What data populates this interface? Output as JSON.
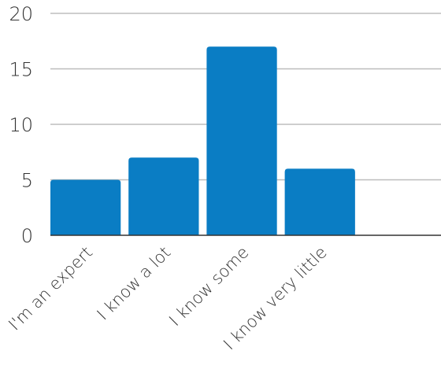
{
  "chart_data": {
    "type": "bar",
    "categories": [
      "I'm an expert",
      "I know a lot",
      "I know some",
      "I know very little",
      ""
    ],
    "values": [
      5,
      7,
      17,
      6,
      0
    ],
    "title": "",
    "xlabel": "",
    "ylabel": "",
    "ylim": [
      0,
      20
    ],
    "yticks": [
      0,
      5,
      10,
      15,
      20
    ],
    "grid": true,
    "colors": {
      "bar": "#0a7dc4",
      "grid": "#bdbdbd",
      "axis": "#333333"
    }
  }
}
